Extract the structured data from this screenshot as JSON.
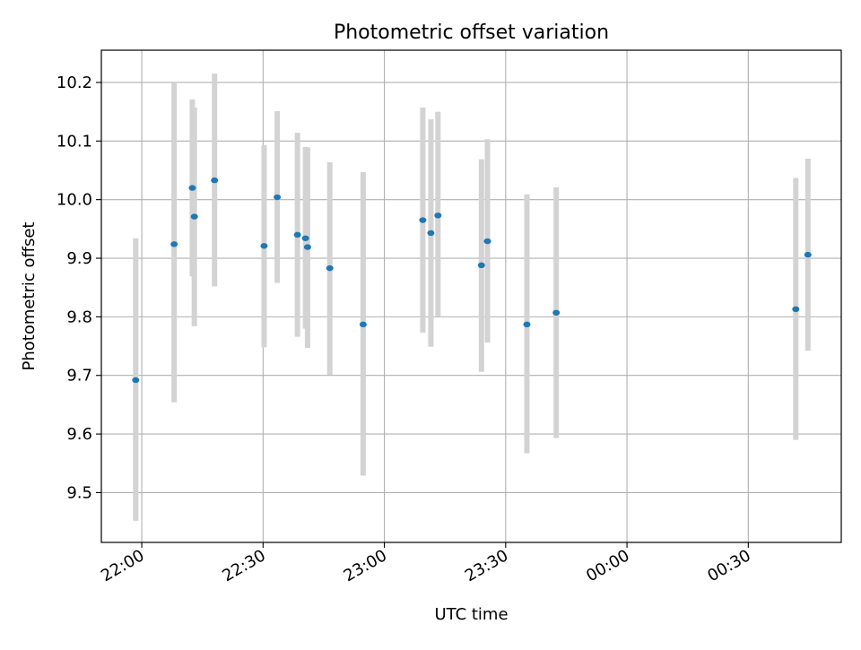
{
  "chart_data": {
    "type": "scatter",
    "title": "Photometric offset variation",
    "xlabel": "UTC time",
    "ylabel": "Photometric offset",
    "xlim": [
      "21:50",
      "00:53"
    ],
    "ylim": [
      9.415,
      10.255
    ],
    "grid": true,
    "x_ticks": [
      {
        "time": "22:00",
        "label": "22:00"
      },
      {
        "time": "22:30",
        "label": "22:30"
      },
      {
        "time": "23:00",
        "label": "23:00"
      },
      {
        "time": "23:30",
        "label": "23:30"
      },
      {
        "time": "00:00",
        "label": "00:00"
      },
      {
        "time": "00:30",
        "label": "00:30"
      }
    ],
    "y_ticks": [
      {
        "value": 9.5,
        "label": "9.5"
      },
      {
        "value": 9.6,
        "label": "9.6"
      },
      {
        "value": 9.7,
        "label": "9.7"
      },
      {
        "value": 9.8,
        "label": "9.8"
      },
      {
        "value": 9.9,
        "label": "9.9"
      },
      {
        "value": 10.0,
        "label": "10.0"
      },
      {
        "value": 10.1,
        "label": "10.1"
      },
      {
        "value": 10.2,
        "label": "10.2"
      }
    ],
    "marker_color": "#1f77b4",
    "errorbar_color": "#d3d3d3",
    "points": [
      {
        "time": "21:58:30",
        "y": 9.692,
        "ylow": 9.452,
        "yhigh": 9.934
      },
      {
        "time": "22:08:00",
        "y": 9.924,
        "ylow": 9.654,
        "yhigh": 10.2
      },
      {
        "time": "22:12:30",
        "y": 10.02,
        "ylow": 9.869,
        "yhigh": 10.171
      },
      {
        "time": "22:13:00",
        "y": 9.971,
        "ylow": 9.784,
        "yhigh": 10.157
      },
      {
        "time": "22:18:00",
        "y": 10.033,
        "ylow": 9.852,
        "yhigh": 10.215
      },
      {
        "time": "22:30:15",
        "y": 9.921,
        "ylow": 9.748,
        "yhigh": 10.093
      },
      {
        "time": "22:33:30",
        "y": 10.004,
        "ylow": 9.858,
        "yhigh": 10.151
      },
      {
        "time": "22:38:30",
        "y": 9.94,
        "ylow": 9.766,
        "yhigh": 10.114
      },
      {
        "time": "22:40:30",
        "y": 9.934,
        "ylow": 9.78,
        "yhigh": 10.09
      },
      {
        "time": "22:41:00",
        "y": 9.919,
        "ylow": 9.747,
        "yhigh": 10.089
      },
      {
        "time": "22:46:30",
        "y": 9.883,
        "ylow": 9.701,
        "yhigh": 10.064
      },
      {
        "time": "22:54:45",
        "y": 9.787,
        "ylow": 9.529,
        "yhigh": 10.047
      },
      {
        "time": "23:09:30",
        "y": 9.965,
        "ylow": 9.773,
        "yhigh": 10.157
      },
      {
        "time": "23:11:30",
        "y": 9.943,
        "ylow": 9.749,
        "yhigh": 10.137
      },
      {
        "time": "23:13:15",
        "y": 9.973,
        "ylow": 9.801,
        "yhigh": 10.15
      },
      {
        "time": "23:24:00",
        "y": 9.888,
        "ylow": 9.706,
        "yhigh": 10.069
      },
      {
        "time": "23:25:30",
        "y": 9.929,
        "ylow": 9.756,
        "yhigh": 10.103
      },
      {
        "time": "23:35:15",
        "y": 9.787,
        "ylow": 9.567,
        "yhigh": 10.009
      },
      {
        "time": "23:42:30",
        "y": 9.807,
        "ylow": 9.593,
        "yhigh": 10.021
      },
      {
        "time": "00:41:45",
        "y": 9.813,
        "ylow": 9.59,
        "yhigh": 10.037
      },
      {
        "time": "00:44:45",
        "y": 9.906,
        "ylow": 9.742,
        "yhigh": 10.07
      }
    ]
  }
}
